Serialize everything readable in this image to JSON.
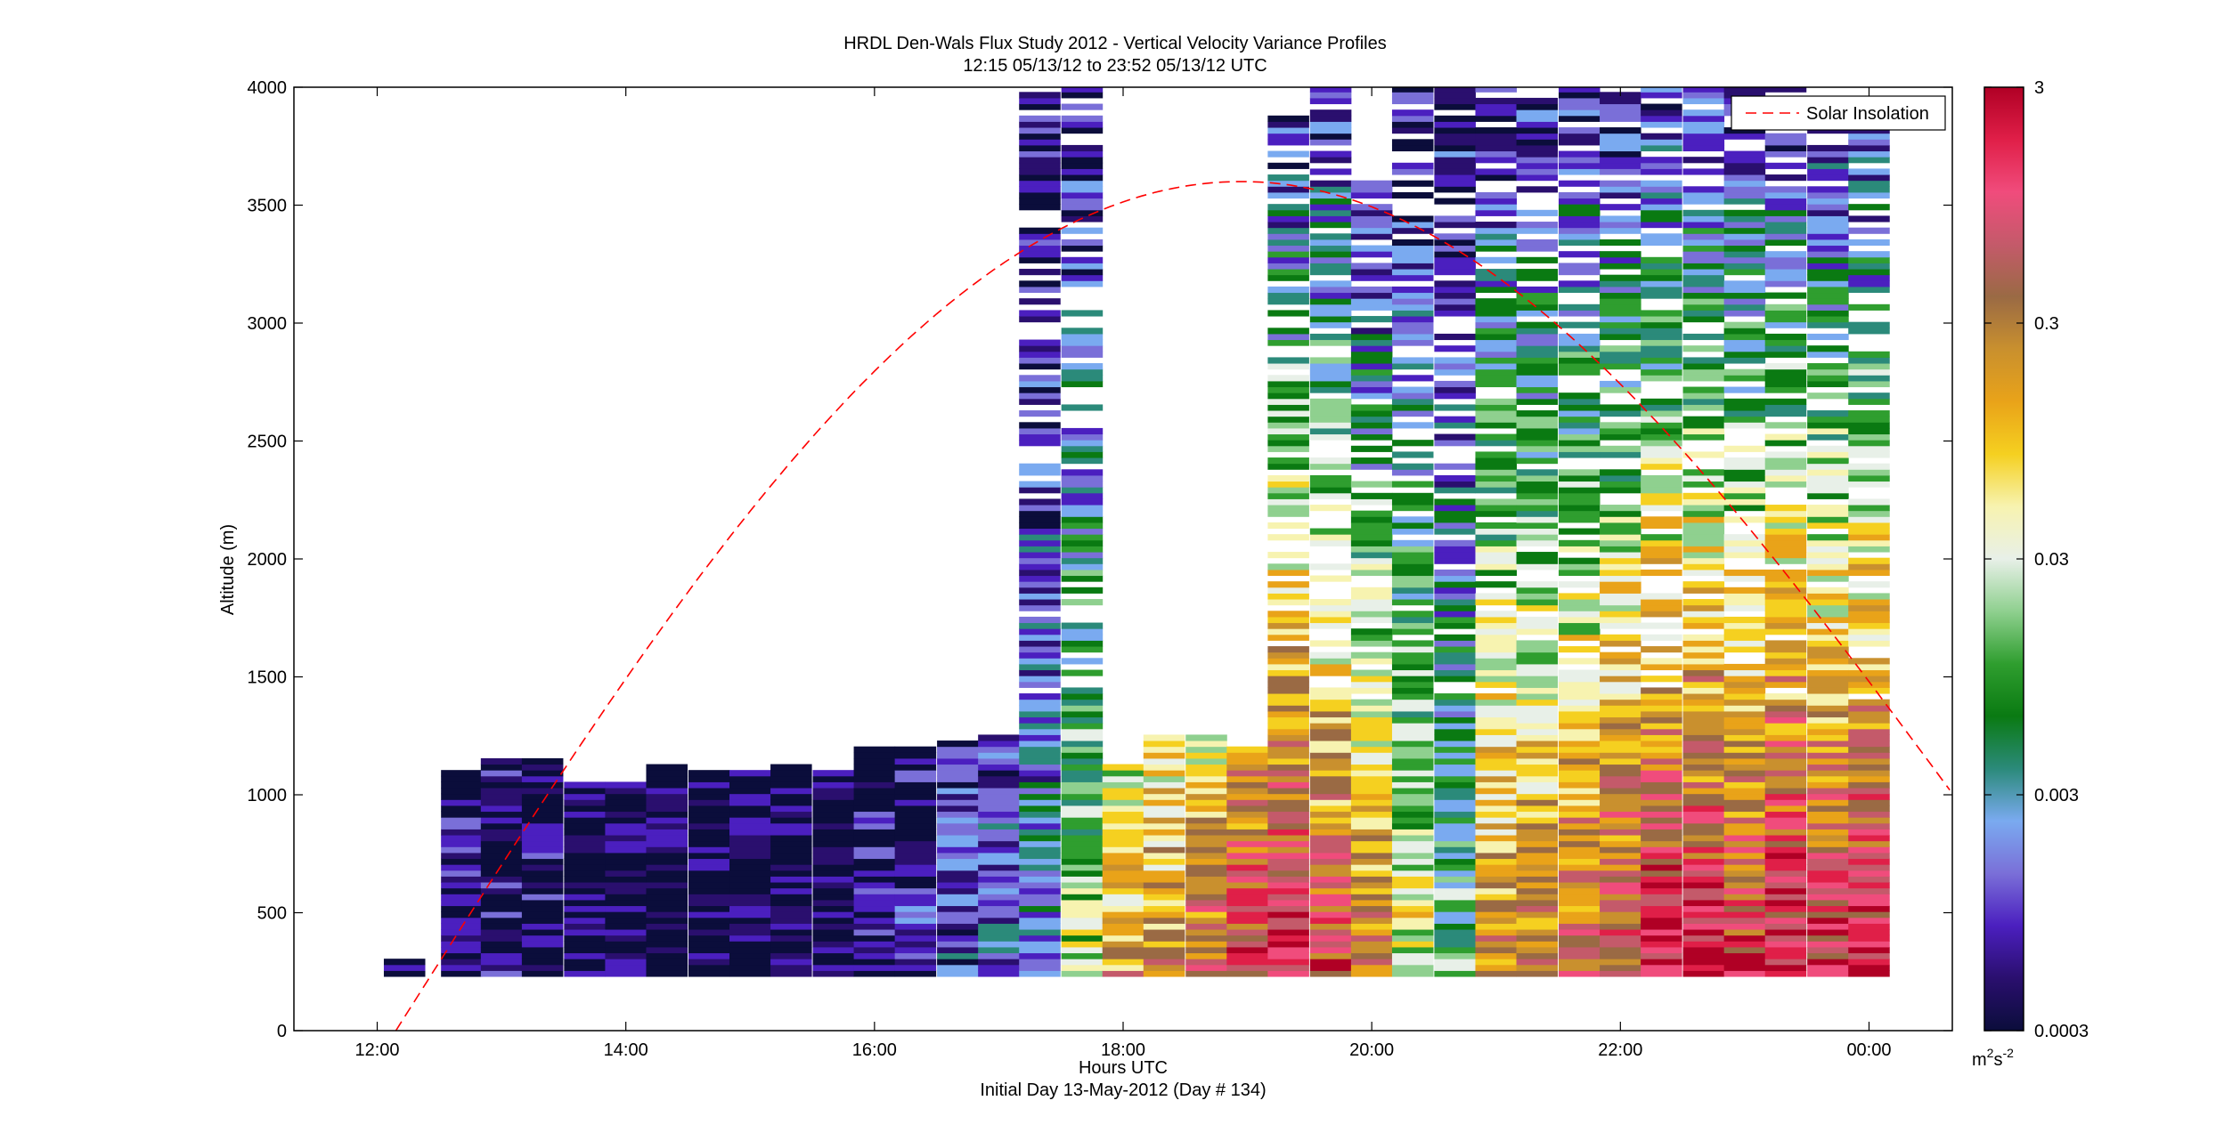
{
  "chart_data": {
    "type": "heatmap",
    "title": "HRDL Den-Wals Flux Study 2012 - Vertical Velocity Variance Profiles",
    "subtitle": "12:15 05/13/12 to 23:52 05/13/12  UTC",
    "xlabel": "Hours UTC",
    "xlabel2": "Initial Day 13-May-2012 (Day # 134)",
    "ylabel": "Altitude (m)",
    "colorbar_unit": "m",
    "colorbar_unit_exponent": "2",
    "colorbar_unit_s": "s",
    "colorbar_unit_s_exponent": "-2",
    "x_ticks": [
      "12:00",
      "14:00",
      "16:00",
      "18:00",
      "20:00",
      "22:00",
      "00:00"
    ],
    "x_tick_hours": [
      12,
      14,
      16,
      18,
      20,
      22,
      24
    ],
    "xlim_hours": [
      11.33,
      24.67
    ],
    "y_ticks": [
      "0",
      "500",
      "1000",
      "1500",
      "2000",
      "2500",
      "3000",
      "3500",
      "4000"
    ],
    "y_tick_values": [
      0,
      500,
      1000,
      1500,
      2000,
      2500,
      3000,
      3500,
      4000
    ],
    "ylim": [
      0,
      4000
    ],
    "colorbar_ticks": [
      "0.0003",
      "0.003",
      "0.03",
      "0.3",
      "3"
    ],
    "colorbar_tick_values": [
      0.0003,
      0.003,
      0.03,
      0.3,
      3
    ],
    "colorbar_scale": "log",
    "colorbar_colors": [
      "#0b0d3b",
      "#2a0f6e",
      "#4b1fbf",
      "#7a6fd8",
      "#7aaaf0",
      "#2b8a7a",
      "#0a7a12",
      "#2f9e2f",
      "#8fd08f",
      "#e8f0e8",
      "#f7f3b0",
      "#f5d020",
      "#e9a319",
      "#c9902e",
      "#9a6a44",
      "#c45a6a",
      "#f04c7c",
      "#e01f48",
      "#b00025"
    ],
    "legend": {
      "label": "Solar Insolation",
      "placement": "top-right",
      "color": "#ff0000",
      "style": "dashed"
    },
    "solar_insolation": {
      "start_hour": 12.15,
      "peak_hour": 18.95,
      "peak_altitude": 3600,
      "end_hour": 24.65,
      "end_altitude": 1020
    },
    "profiles": [
      {
        "hour": 12.22,
        "top": 290,
        "level": 0.0003
      },
      {
        "hour": 12.68,
        "top": 1100,
        "level": 0.0005
      },
      {
        "hour": 13.0,
        "top": 1150,
        "level": 0.0004
      },
      {
        "hour": 13.33,
        "top": 1150,
        "level": 0.0004
      },
      {
        "hour": 13.67,
        "top": 1040,
        "level": 0.0003
      },
      {
        "hour": 14.0,
        "top": 1040,
        "level": 0.0003
      },
      {
        "hour": 14.33,
        "top": 1120,
        "level": 0.0003
      },
      {
        "hour": 14.67,
        "top": 1100,
        "level": 0.0003
      },
      {
        "hour": 15.0,
        "top": 1100,
        "level": 0.0003
      },
      {
        "hour": 15.33,
        "top": 1120,
        "level": 0.0003
      },
      {
        "hour": 15.67,
        "top": 1100,
        "level": 0.0003
      },
      {
        "hour": 16.0,
        "top": 1190,
        "level": 0.0004
      },
      {
        "hour": 16.33,
        "top": 1190,
        "level": 0.0006
      },
      {
        "hour": 16.67,
        "top": 1220,
        "level": 0.001
      },
      {
        "hour": 17.0,
        "top": 1240,
        "level": 0.0015
      },
      {
        "hour": 17.33,
        "top": 4000,
        "level": 0.003
      },
      {
        "hour": 17.67,
        "top": 4000,
        "level": 0.03
      },
      {
        "hour": 18.0,
        "top": 1120,
        "level": 0.2
      },
      {
        "hour": 18.33,
        "top": 1250,
        "level": 0.3
      },
      {
        "hour": 18.67,
        "top": 1250,
        "level": 0.5
      },
      {
        "hour": 19.0,
        "top": 1200,
        "level": 1.5
      },
      {
        "hour": 19.33,
        "top": 3900,
        "level": 2.0
      },
      {
        "hour": 19.67,
        "top": 4000,
        "level": 0.8
      },
      {
        "hour": 20.0,
        "top": 3600,
        "level": 0.3
      },
      {
        "hour": 20.33,
        "top": 4000,
        "level": 0.05
      },
      {
        "hour": 20.67,
        "top": 4000,
        "level": 0.01
      },
      {
        "hour": 21.0,
        "top": 4000,
        "level": 0.3
      },
      {
        "hour": 21.33,
        "top": 4000,
        "level": 0.4
      },
      {
        "hour": 21.67,
        "top": 4000,
        "level": 0.5
      },
      {
        "hour": 22.0,
        "top": 4000,
        "level": 1.0
      },
      {
        "hour": 22.33,
        "top": 4000,
        "level": 2.5
      },
      {
        "hour": 22.67,
        "top": 4000,
        "level": 2.0
      },
      {
        "hour": 23.0,
        "top": 4000,
        "level": 1.2
      },
      {
        "hour": 23.33,
        "top": 4000,
        "level": 2.5
      },
      {
        "hour": 23.67,
        "top": 3900,
        "level": 1.5
      },
      {
        "hour": 24.0,
        "top": 3850,
        "level": 2.5
      }
    ]
  }
}
